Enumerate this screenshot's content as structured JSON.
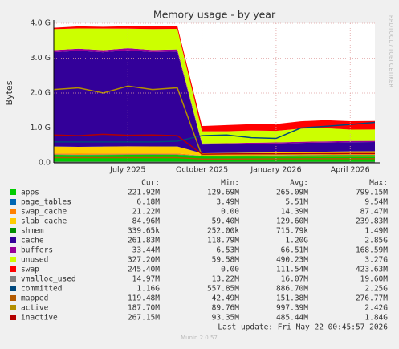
{
  "chart_data": {
    "type": "area",
    "title": "Memory usage - by year",
    "ylabel": "Bytes",
    "side_note": "RRDTOOL / TOBI OETIKER",
    "x": [
      "2025-04",
      "2025-05",
      "2025-06",
      "2025-07",
      "2025-08",
      "2025-09",
      "2025-10",
      "2025-11",
      "2025-12",
      "2026-01",
      "2026-02",
      "2026-03",
      "2026-04",
      "2026-05"
    ],
    "xlim": [
      "2025-04",
      "2026-05"
    ],
    "xticks": [
      {
        "value": "2025-07",
        "label": "July 2025"
      },
      {
        "value": "2025-10",
        "label": "October 2025"
      },
      {
        "value": "2026-01",
        "label": "January 2026"
      },
      {
        "value": "2026-04",
        "label": "April 2026"
      }
    ],
    "ylim": [
      0,
      4000000000
    ],
    "yticks": [
      {
        "value": 0,
        "label": "0.0"
      },
      {
        "value": 1000000000,
        "label": "1.0 G"
      },
      {
        "value": 2000000000,
        "label": "2.0 G"
      },
      {
        "value": 3000000000,
        "label": "3.0 G"
      },
      {
        "value": 4000000000,
        "label": "4.0 G"
      }
    ],
    "grid": true,
    "stats_header": [
      "Cur:",
      "Min:",
      "Avg:",
      "Max:"
    ],
    "series": [
      {
        "name": "apps",
        "color": "#00cc00",
        "stacked": true,
        "values": [
          230000000,
          225000000,
          228000000,
          230000000,
          232000000,
          230000000,
          200000000,
          205000000,
          210000000,
          210000000,
          215000000,
          218000000,
          220000000,
          222000000
        ]
      },
      {
        "name": "page_tables",
        "color": "#0066b3",
        "stacked": true,
        "values": [
          9000000,
          9000000,
          9000000,
          9000000,
          9000000,
          9000000,
          6000000,
          6000000,
          6000000,
          6000000,
          6000000,
          6000000,
          6000000,
          6000000
        ]
      },
      {
        "name": "swap_cache",
        "color": "#ff8000",
        "stacked": true,
        "values": [
          30000000,
          30000000,
          30000000,
          30000000,
          30000000,
          30000000,
          0,
          1000000,
          2000000,
          5000000,
          10000000,
          15000000,
          20000000,
          21000000
        ]
      },
      {
        "name": "slab_cache",
        "color": "#ffcc00",
        "stacked": true,
        "values": [
          200000000,
          195000000,
          200000000,
          205000000,
          200000000,
          200000000,
          70000000,
          72000000,
          75000000,
          78000000,
          80000000,
          82000000,
          84000000,
          85000000
        ]
      },
      {
        "name": "shmem",
        "color": "#008f00",
        "stacked": true,
        "values": [
          1200000,
          1200000,
          1200000,
          1200000,
          1200000,
          1200000,
          300000,
          300000,
          300000,
          300000,
          300000,
          300000,
          300000,
          340000
        ]
      },
      {
        "name": "cache",
        "color": "#330099",
        "stacked": true,
        "values": [
          2700000000,
          2750000000,
          2700000000,
          2750000000,
          2700000000,
          2720000000,
          250000000,
          250000000,
          255000000,
          255000000,
          260000000,
          260000000,
          262000000,
          262000000
        ]
      },
      {
        "name": "buffers",
        "color": "#990099",
        "stacked": true,
        "values": [
          60000000,
          60000000,
          60000000,
          60000000,
          60000000,
          60000000,
          30000000,
          30000000,
          30000000,
          32000000,
          32000000,
          33000000,
          33000000,
          33000000
        ]
      },
      {
        "name": "unused",
        "color": "#ccff00",
        "stacked": true,
        "values": [
          600000000,
          580000000,
          620000000,
          560000000,
          600000000,
          590000000,
          350000000,
          340000000,
          350000000,
          330000000,
          380000000,
          380000000,
          330000000,
          327000000
        ]
      },
      {
        "name": "swap",
        "color": "#ff0000",
        "stacked": true,
        "values": [
          40000000,
          60000000,
          50000000,
          70000000,
          80000000,
          90000000,
          150000000,
          180000000,
          180000000,
          200000000,
          210000000,
          230000000,
          240000000,
          245000000
        ]
      },
      {
        "name": "vmalloc_used",
        "color": "#808080",
        "stacked": false,
        "values": [
          16000000,
          16000000,
          16000000,
          16000000,
          16000000,
          16000000,
          15000000,
          15000000,
          15000000,
          15000000,
          15000000,
          15000000,
          15000000,
          15000000
        ]
      },
      {
        "name": "committed",
        "color": "#00487d",
        "stacked": false,
        "values": [
          600000000,
          600000000,
          600000000,
          600000000,
          600000000,
          620000000,
          780000000,
          800000000,
          720000000,
          700000000,
          1000000000,
          1050000000,
          1100000000,
          1160000000
        ]
      },
      {
        "name": "mapped",
        "color": "#b35a00",
        "stacked": false,
        "values": [
          150000000,
          150000000,
          150000000,
          150000000,
          150000000,
          150000000,
          110000000,
          110000000,
          112000000,
          114000000,
          116000000,
          118000000,
          119000000,
          119000000
        ]
      },
      {
        "name": "active",
        "color": "#b38f00",
        "stacked": false,
        "values": [
          2100000000,
          2150000000,
          2000000000,
          2200000000,
          2100000000,
          2150000000,
          200000000,
          195000000,
          195000000,
          190000000,
          190000000,
          188000000,
          188000000,
          188000000
        ]
      },
      {
        "name": "inactive",
        "color": "#b30000",
        "stacked": false,
        "values": [
          800000000,
          780000000,
          820000000,
          790000000,
          800000000,
          780000000,
          250000000,
          255000000,
          258000000,
          260000000,
          262000000,
          264000000,
          266000000,
          267000000
        ]
      }
    ],
    "stats": [
      [
        "221.92M",
        "129.69M",
        "265.09M",
        "799.15M"
      ],
      [
        "6.18M",
        "3.49M",
        "5.51M",
        "9.54M"
      ],
      [
        "21.22M",
        "0.00",
        "14.39M",
        "87.47M"
      ],
      [
        "84.96M",
        "59.40M",
        "129.60M",
        "239.83M"
      ],
      [
        "339.65k",
        "252.00k",
        "715.79k",
        "1.49M"
      ],
      [
        "261.83M",
        "118.79M",
        "1.20G",
        "2.85G"
      ],
      [
        "33.44M",
        "6.53M",
        "66.51M",
        "168.59M"
      ],
      [
        "327.20M",
        "59.58M",
        "490.23M",
        "3.27G"
      ],
      [
        "245.40M",
        "0.00",
        "111.54M",
        "423.63M"
      ],
      [
        "14.97M",
        "13.22M",
        "16.07M",
        "19.60M"
      ],
      [
        "1.16G",
        "557.85M",
        "886.70M",
        "2.25G"
      ],
      [
        "119.48M",
        "42.49M",
        "151.38M",
        "276.77M"
      ],
      [
        "187.70M",
        "89.76M",
        "997.39M",
        "2.42G"
      ],
      [
        "267.15M",
        "93.35M",
        "485.44M",
        "1.84G"
      ]
    ],
    "last_update": "Last update: Fri May 22 00:45:57 2026",
    "footer": "Munin 2.0.57"
  }
}
